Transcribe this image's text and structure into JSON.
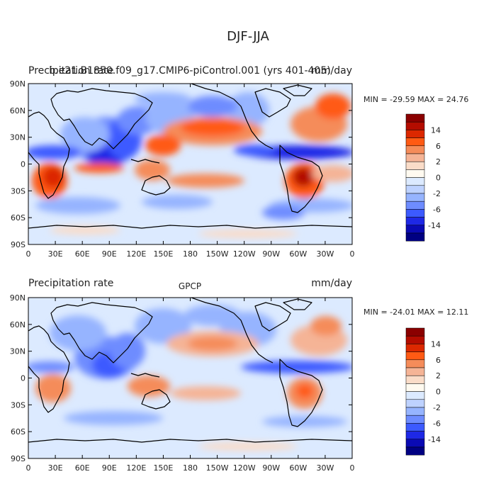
{
  "title": "DJF-JJA",
  "chart_data": [
    {
      "type": "heatmap",
      "left_title": "Precipitation rate",
      "center_title": "b.e21.B1850.f09_g17.CMIP6-piControl.001 (yrs 401-405)",
      "units": "mm/day",
      "stats": "MIN = -29.59 MAX =  24.76",
      "min": -29.59,
      "max": 24.76,
      "x_tick_labels": [
        "0",
        "30E",
        "60E",
        "90E",
        "120E",
        "150E",
        "180",
        "150W",
        "120W",
        "90W",
        "60W",
        "30W",
        "0"
      ],
      "y_tick_labels": [
        "90N",
        "60N",
        "30N",
        "0",
        "30S",
        "60S",
        "90S"
      ],
      "xlim": [
        0,
        360
      ],
      "ylim": [
        -90,
        90
      ],
      "colorbar_labels": [
        "14",
        "6",
        "2",
        "0",
        "-2",
        "-6",
        "-14"
      ]
    },
    {
      "type": "heatmap",
      "left_title": "Precipitation rate",
      "center_title": "GPCP",
      "units": "mm/day",
      "stats": "MIN = -24.01 MAX =  12.11",
      "min": -24.01,
      "max": 12.11,
      "x_tick_labels": [
        "0",
        "30E",
        "60E",
        "90E",
        "120E",
        "150E",
        "180",
        "150W",
        "120W",
        "90W",
        "60W",
        "30W",
        "0"
      ],
      "y_tick_labels": [
        "90N",
        "60N",
        "30N",
        "0",
        "30S",
        "60S",
        "90S"
      ],
      "xlim": [
        0,
        360
      ],
      "ylim": [
        -90,
        90
      ],
      "colorbar_labels": [
        "14",
        "6",
        "2",
        "0",
        "-2",
        "-6",
        "-14"
      ]
    }
  ],
  "colorbar_colors": [
    "#8b0000",
    "#b40c00",
    "#dc2800",
    "#ff5a14",
    "#f58c5a",
    "#f5b496",
    "#fadcc8",
    "#fffaf0",
    "#dceaff",
    "#bed2ff",
    "#96b4ff",
    "#6e8cff",
    "#3c5aff",
    "#1e28e6",
    "#0a0ab4",
    "#000082"
  ]
}
